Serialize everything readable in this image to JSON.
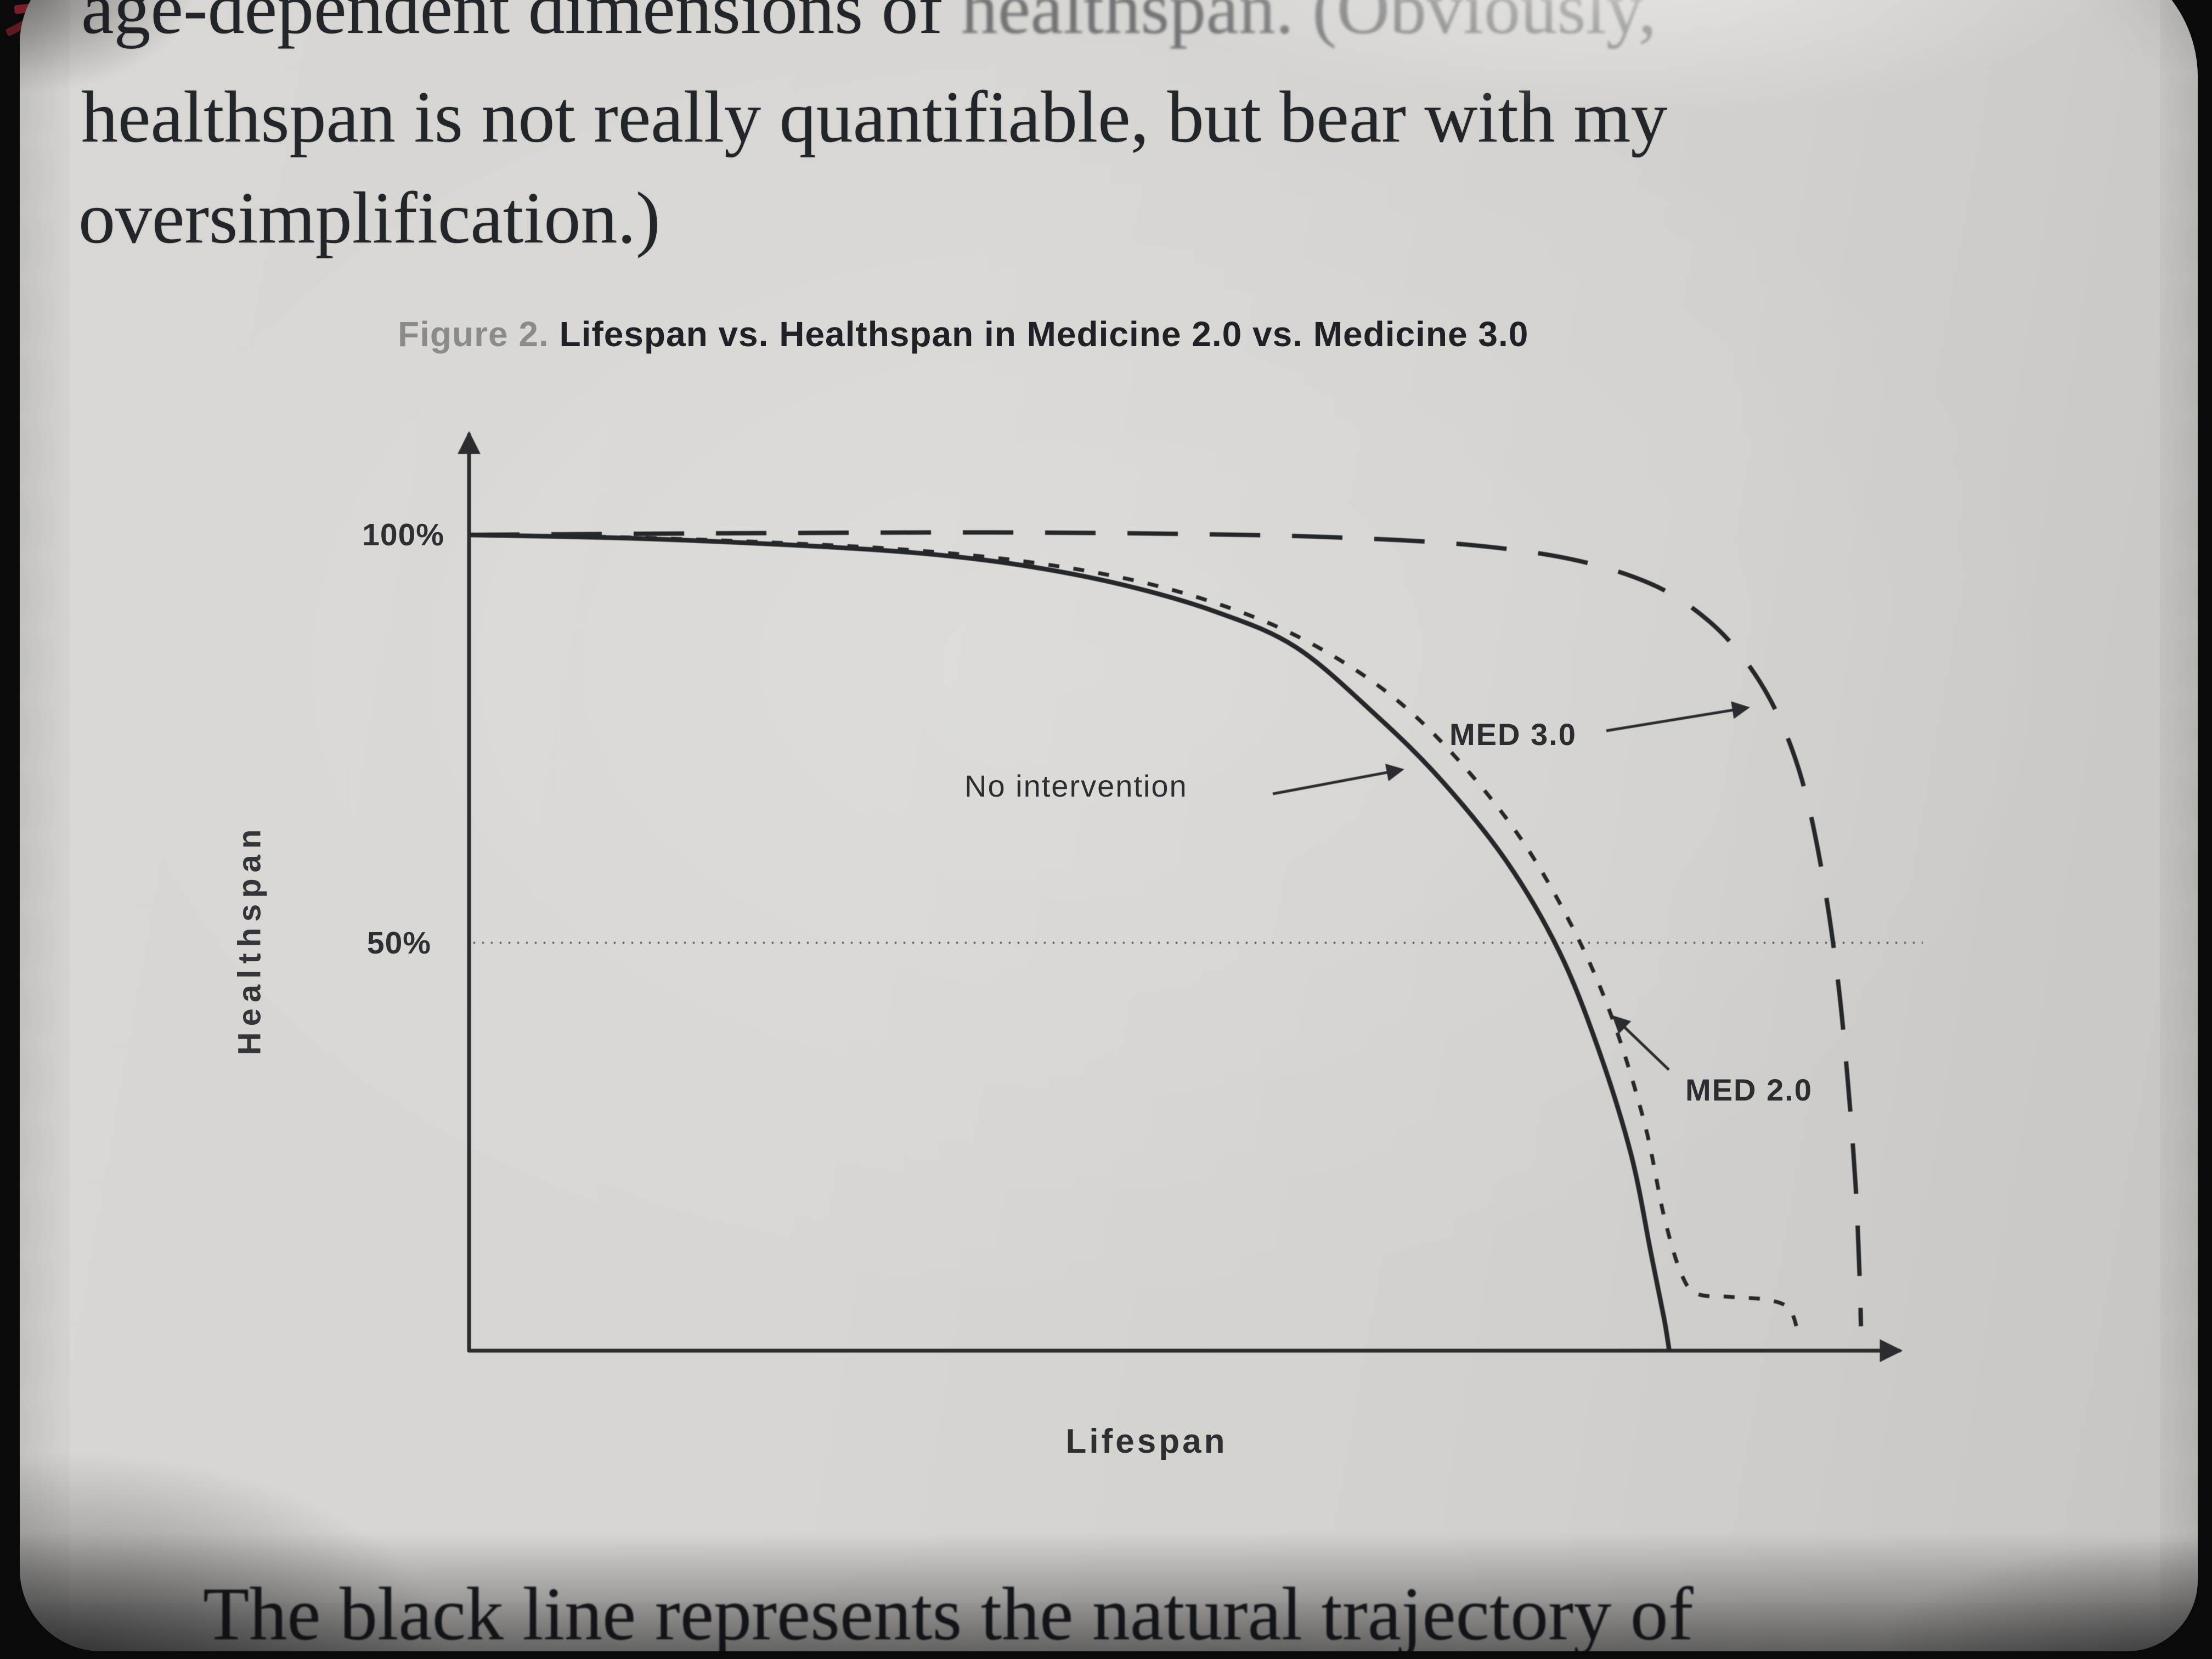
{
  "page": {
    "body_text": {
      "line1_left": "age-dependent dimensions of ",
      "line1_right": "healthspan. (Obviously,",
      "line2": "healthspan is not really quantifiable, but bear with my",
      "line3": "oversimplification.)",
      "bottom_line": "The black line represents the natural trajectory of"
    },
    "figure_caption": {
      "prefix": "Figure 2.",
      "title": " Lifespan vs. Healthspan in Medicine 2.0 vs. Medicine 3.0"
    }
  },
  "chart_data": {
    "type": "line",
    "title": "Figure 2. Lifespan vs. Healthspan in Medicine 2.0 vs. Medicine 3.0",
    "xlabel": "Lifespan",
    "ylabel": "Healthspan",
    "xlim": [
      0,
      108
    ],
    "ylim": [
      0,
      105
    ],
    "grid": false,
    "x_tick_labels": [],
    "yticks": [
      {
        "value": 100,
        "label": "100%"
      },
      {
        "value": 50,
        "label": "50%"
      }
    ],
    "reference_line": {
      "value": 50,
      "style": "dotted"
    },
    "series": [
      {
        "name": "No intervention",
        "style": "solid",
        "points": [
          [
            0,
            100
          ],
          [
            12,
            99.6
          ],
          [
            24,
            98.8
          ],
          [
            34,
            97.8
          ],
          [
            42,
            96.3
          ],
          [
            50,
            93.8
          ],
          [
            57,
            90.5
          ],
          [
            63,
            86.2
          ],
          [
            69,
            78
          ],
          [
            74,
            70
          ],
          [
            79,
            60
          ],
          [
            83,
            49
          ],
          [
            86,
            37
          ],
          [
            88.5,
            24
          ],
          [
            90,
            12
          ],
          [
            91,
            4
          ],
          [
            91.4,
            0
          ]
        ]
      },
      {
        "name": "MED 2.0",
        "style": "short-dash",
        "points": [
          [
            0,
            100
          ],
          [
            12,
            99.7
          ],
          [
            24,
            99
          ],
          [
            34,
            98.1
          ],
          [
            43,
            96.6
          ],
          [
            51,
            94.3
          ],
          [
            58,
            91
          ],
          [
            64,
            86.8
          ],
          [
            70,
            80.6
          ],
          [
            75,
            73
          ],
          [
            80,
            63
          ],
          [
            84,
            52
          ],
          [
            87,
            41
          ],
          [
            89.5,
            28
          ],
          [
            91,
            16.5
          ],
          [
            92.3,
            9.5
          ],
          [
            93.5,
            7
          ],
          [
            96,
            6.6
          ],
          [
            99,
            6.2
          ],
          [
            100.6,
            5
          ],
          [
            101.3,
            1.5
          ]
        ]
      },
      {
        "name": "MED 3.0",
        "style": "long-dash",
        "points": [
          [
            0,
            100
          ],
          [
            20,
            100.2
          ],
          [
            40,
            100.3
          ],
          [
            55,
            100.1
          ],
          [
            66,
            99.7
          ],
          [
            76,
            98.8
          ],
          [
            84,
            97
          ],
          [
            90,
            94
          ],
          [
            94,
            90
          ],
          [
            97,
            85
          ],
          [
            99.5,
            78.5
          ],
          [
            101.5,
            70
          ],
          [
            103,
            59
          ],
          [
            104.2,
            46
          ],
          [
            105,
            33
          ],
          [
            105.6,
            20
          ],
          [
            105.9,
            9
          ],
          [
            106,
            3
          ]
        ]
      }
    ],
    "annotations": [
      {
        "label": "No intervention",
        "points_to": "No intervention"
      },
      {
        "label": "MED 3.0",
        "points_to": "MED 3.0"
      },
      {
        "label": "MED 2.0",
        "points_to": "MED 2.0"
      }
    ],
    "colors": {
      "curve": "#26272b",
      "axis": "#2b2c30",
      "reference": "#4c4d51",
      "caption_prefix": "#8b8c88"
    }
  }
}
